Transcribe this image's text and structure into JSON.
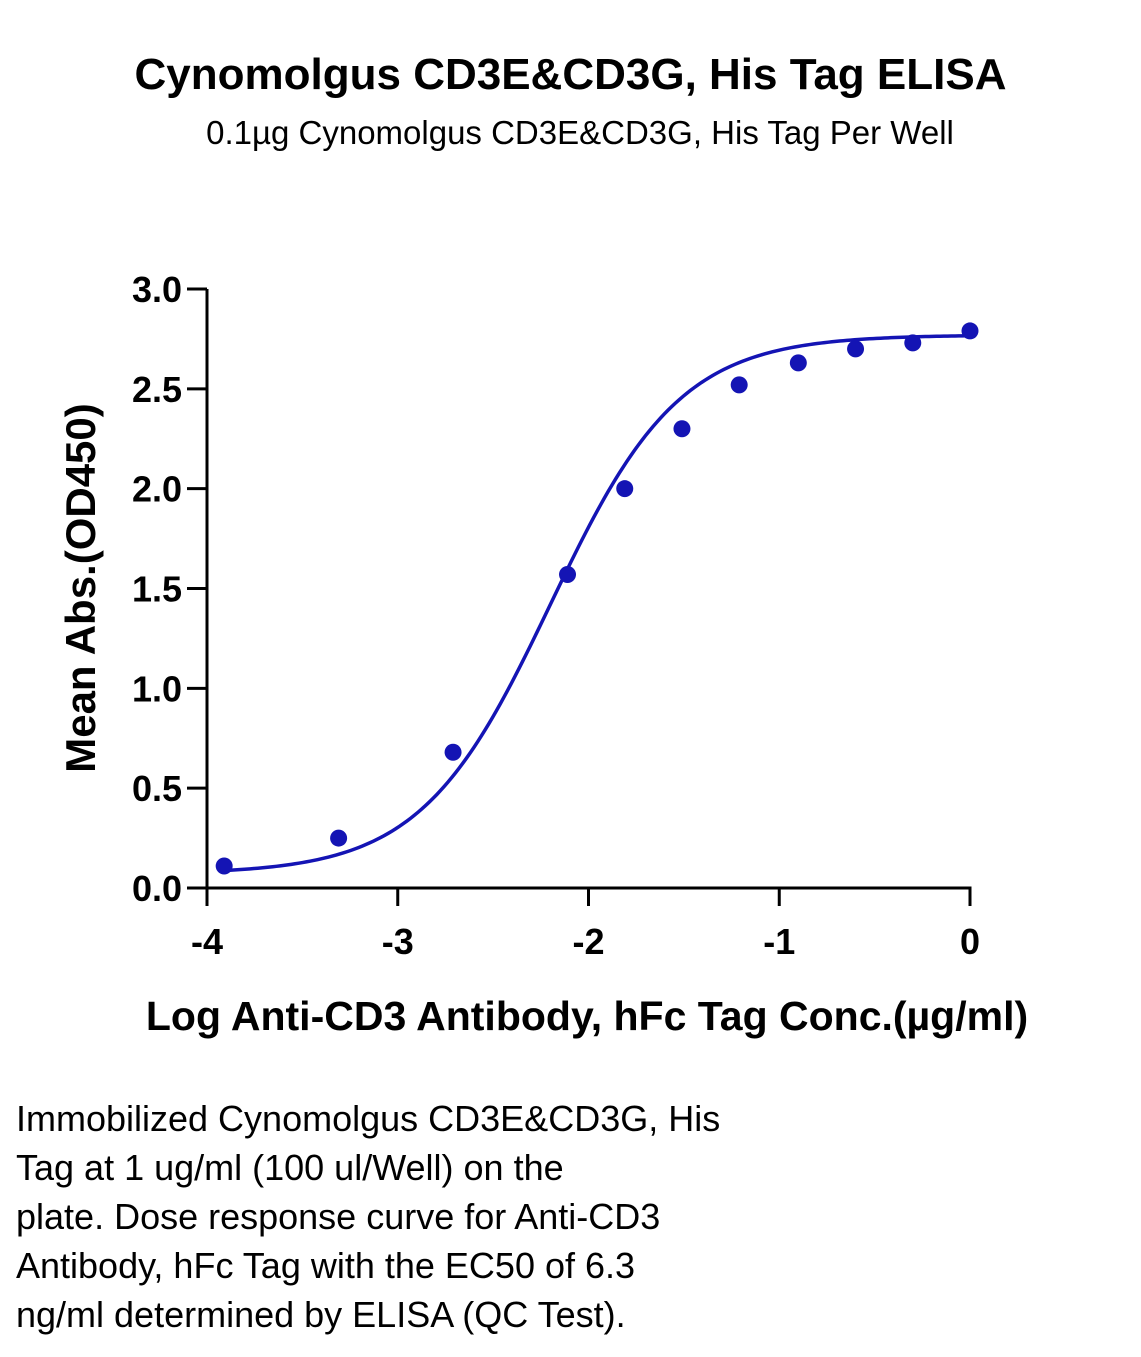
{
  "chart_data": {
    "type": "scatter",
    "title": "Cynomolgus CD3E&CD3G, His Tag ELISA",
    "subtitle": "0.1µg Cynomolgus CD3E&CD3G, His Tag Per Well",
    "xlabel": "Log Anti-CD3 Antibody, hFc Tag Conc.(µg/ml)",
    "ylabel": "Mean Abs.(OD450)",
    "xlim": [
      -4,
      0
    ],
    "ylim": [
      0,
      3.0
    ],
    "x_ticks": [
      "-4",
      "-3",
      "-2",
      "-1",
      "0"
    ],
    "y_ticks": [
      "0.0",
      "0.5",
      "1.0",
      "1.5",
      "2.0",
      "2.5",
      "3.0"
    ],
    "grid": false,
    "series": [
      {
        "x": [
          -3.91,
          -3.31,
          -2.71,
          -2.11,
          -1.81,
          -1.51,
          -1.21,
          -0.9,
          -0.6,
          -0.3,
          0.0
        ],
        "y": [
          0.11,
          0.25,
          0.68,
          1.57,
          2.0,
          2.3,
          2.52,
          2.63,
          2.7,
          2.73,
          2.79
        ],
        "color": "#1414b4",
        "fit": "4PL sigmoid curve"
      }
    ]
  },
  "caption": {
    "lines": [
      "Immobilized Cynomolgus CD3E&CD3G, His",
      "Tag at 1 ug/ml (100 ul/Well) on the",
      "plate. Dose response curve for Anti-CD3",
      "Antibody, hFc Tag with the EC50 of 6.3",
      "ng/ml determined by ELISA (QC Test)."
    ]
  }
}
